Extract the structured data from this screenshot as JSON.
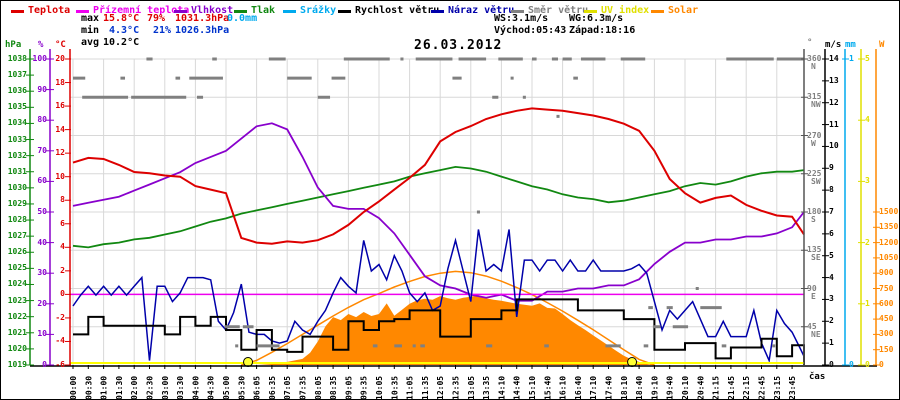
{
  "title": "26.03.2012",
  "legend": {
    "items": [
      {
        "label": "Teplota",
        "color": "#dd0000"
      },
      {
        "label": "Přízemní teplota",
        "color": "#ee00ee"
      },
      {
        "label": "Vlhkost",
        "color": "#8800cc"
      },
      {
        "label": "Tlak",
        "color": "#118811"
      },
      {
        "label": "Srážky",
        "color": "#00aaee"
      },
      {
        "label": "Rychlost větru",
        "color": "#000000"
      },
      {
        "label": "Náraz větru",
        "color": "#0000aa"
      },
      {
        "label": "Směr větru",
        "color": "#808080"
      },
      {
        "label": "UV index",
        "color": "#e0e000"
      },
      {
        "label": "Solar",
        "color": "#ff8800"
      }
    ]
  },
  "stats": {
    "max_label": "max",
    "max_temp": "15.8°C",
    "max_hum": "79%",
    "max_pres": "1031.3hPa",
    "max_rain": "0.0mm",
    "min_label": "min",
    "min_temp": "4.3°C",
    "min_hum": "21%",
    "min_pres": "1026.3hPa",
    "avg_label": "avg",
    "avg_temp": "10.2°C",
    "wind_speed": "WS:3.1m/s",
    "wind_gust": "WG:6.3m/s",
    "sunrise": "Východ:05:43",
    "sunset": "Západ:18:16"
  },
  "axis_headers": {
    "pressure": "hPa",
    "humidity": "%",
    "temperature": "°C",
    "direction": "°",
    "wind": "m/s",
    "rain": "mm",
    "solar": "W"
  },
  "chart_data": {
    "type": "line",
    "title": "26.03.2012",
    "x_axis": {
      "label": "čas",
      "tick_labels": [
        "00:00",
        "00:30",
        "01:00",
        "01:30",
        "02:00",
        "02:30",
        "03:00",
        "03:30",
        "04:00",
        "04:30",
        "05:00",
        "05:30",
        "06:05",
        "06:35",
        "07:05",
        "07:35",
        "08:05",
        "08:35",
        "09:05",
        "09:35",
        "10:05",
        "10:35",
        "11:05",
        "11:35",
        "12:05",
        "12:35",
        "13:05",
        "13:35",
        "14:10",
        "14:40",
        "15:10",
        "15:40",
        "16:10",
        "16:40",
        "17:10",
        "17:40",
        "18:10",
        "18:40",
        "19:10",
        "19:40",
        "20:10",
        "20:40",
        "21:15",
        "21:45",
        "22:15",
        "22:45",
        "23:15",
        "23:45"
      ]
    },
    "axes": {
      "pressure_hpa": {
        "min": 1019,
        "max": 1038,
        "tick_step": 1,
        "color": "#118811"
      },
      "humidity_pct": {
        "min": 0,
        "max": 100,
        "tick_step": 10,
        "color": "#8800cc"
      },
      "temperature_c": {
        "min": -6,
        "max": 20,
        "tick_step": 2,
        "color": "#dd0000"
      },
      "wind_direction_deg": {
        "min": 0,
        "max": 360,
        "tick_step": 45,
        "color": "#555555",
        "compass": {
          "45": "NE",
          "90": "E",
          "135": "SE",
          "180": "S",
          "225": "SW",
          "270": "W",
          "315": "NW",
          "360": "N"
        }
      },
      "wind_ms": {
        "min": 0,
        "max": 14,
        "tick_step": 1,
        "color": "#000000"
      },
      "rain_mm": {
        "min": 0,
        "max": 1,
        "tick_step": 1,
        "color": "#00aaee"
      },
      "uv_index": {
        "min": 0,
        "max": 5,
        "tick_step": 1,
        "color": "#e0e000"
      },
      "solar_w": {
        "min": 0,
        "label_max": 1500,
        "tick_step": 150,
        "color": "#ff8800"
      }
    },
    "series": {
      "temperature": {
        "name": "Teplota",
        "unit": "°C",
        "color": "#dd0000",
        "t_start": 0,
        "t_step": 0.5,
        "values": [
          11.2,
          11.6,
          11.5,
          11.0,
          10.4,
          10.3,
          10.1,
          10.0,
          9.2,
          8.9,
          8.6,
          4.8,
          4.4,
          4.3,
          4.5,
          4.4,
          4.6,
          5.1,
          5.9,
          7.0,
          7.9,
          8.9,
          9.9,
          11.0,
          13.0,
          13.8,
          14.3,
          14.9,
          15.3,
          15.6,
          15.8,
          15.7,
          15.6,
          15.4,
          15.2,
          14.9,
          14.5,
          13.9,
          12.2,
          9.8,
          8.6,
          7.8,
          8.2,
          8.4,
          7.6,
          7.1,
          6.7,
          6.6,
          5.1
        ]
      },
      "ground_temperature": {
        "name": "Přízemní teplota",
        "unit": "°C",
        "color": "#ee00ee",
        "constant_value": 0.0
      },
      "humidity": {
        "name": "Vlhkost",
        "unit": "%",
        "color": "#8800cc",
        "t_start": 0,
        "t_step": 0.5,
        "values": [
          52,
          53,
          54,
          55,
          57,
          59,
          61,
          63,
          66,
          68,
          70,
          74,
          78,
          79,
          77,
          68,
          58,
          52,
          51,
          51,
          48,
          43,
          36,
          29,
          26,
          25,
          23,
          22,
          23,
          21,
          21,
          24,
          24,
          25,
          25,
          26,
          26,
          28,
          33,
          37,
          40,
          40,
          41,
          41,
          42,
          42,
          43,
          45,
          50
        ]
      },
      "pressure": {
        "name": "Tlak",
        "unit": "hPa",
        "color": "#118811",
        "t_start": 0,
        "t_step": 0.5,
        "values": [
          1026.4,
          1026.3,
          1026.5,
          1026.6,
          1026.8,
          1026.9,
          1027.1,
          1027.3,
          1027.6,
          1027.9,
          1028.1,
          1028.4,
          1028.6,
          1028.8,
          1029.0,
          1029.2,
          1029.4,
          1029.6,
          1029.8,
          1030.0,
          1030.2,
          1030.4,
          1030.7,
          1030.9,
          1031.1,
          1031.3,
          1031.2,
          1031.0,
          1030.7,
          1030.4,
          1030.1,
          1029.9,
          1029.6,
          1029.4,
          1029.3,
          1029.1,
          1029.2,
          1029.4,
          1029.6,
          1029.8,
          1030.1,
          1030.3,
          1030.2,
          1030.4,
          1030.7,
          1030.9,
          1031.0,
          1031.0,
          1031.1
        ]
      },
      "rain": {
        "name": "Srážky",
        "unit": "mm",
        "color": "#00aaee",
        "constant_value": 0.0
      },
      "wind_speed": {
        "name": "Rychlost větru",
        "unit": "m/s",
        "color": "#000000",
        "t_start": 0,
        "t_step": 0.5,
        "values": [
          1.4,
          2.2,
          1.8,
          1.8,
          1.8,
          1.8,
          1.4,
          2.2,
          1.8,
          2.2,
          1.6,
          0.7,
          1.6,
          0.7,
          0.6,
          1.3,
          1.3,
          0.7,
          2.0,
          1.6,
          2.0,
          2.1,
          2.5,
          2.5,
          1.3,
          1.3,
          2.1,
          2.1,
          2.5,
          3.0,
          3.0,
          3.0,
          3.0,
          2.5,
          2.5,
          2.5,
          2.1,
          2.1,
          0.7,
          0.7,
          1.0,
          1.0,
          0.3,
          0.8,
          0.8,
          1.2,
          0.4,
          0.9,
          0.0
        ]
      },
      "wind_gust": {
        "name": "Náraz větru",
        "unit": "m/s",
        "color": "#0000aa",
        "t_start": 0,
        "t_step": 0.25,
        "values": [
          2.7,
          3.2,
          3.6,
          3.2,
          3.6,
          3.2,
          3.6,
          3.2,
          3.6,
          4.0,
          0.2,
          3.6,
          3.6,
          2.9,
          3.3,
          4.0,
          4.0,
          4.0,
          3.9,
          2.0,
          1.6,
          2.4,
          3.7,
          1.5,
          1.4,
          1.4,
          1.1,
          1.0,
          1.1,
          2.0,
          1.6,
          1.4,
          2.0,
          2.5,
          3.3,
          4.0,
          3.6,
          3.3,
          5.7,
          4.3,
          4.6,
          3.9,
          5.0,
          4.3,
          3.3,
          2.9,
          3.3,
          2.5,
          2.7,
          4.4,
          5.7,
          4.3,
          2.9,
          6.2,
          4.3,
          4.6,
          4.3,
          6.2,
          2.2,
          4.8,
          4.8,
          4.3,
          4.8,
          4.8,
          4.3,
          4.8,
          4.3,
          4.3,
          4.8,
          4.3,
          4.3,
          4.3,
          4.3,
          4.4,
          4.6,
          4.2,
          2.9,
          1.6,
          2.5,
          2.1,
          2.5,
          2.9,
          2.1,
          1.3,
          1.3,
          2.0,
          1.3,
          1.3,
          1.3,
          2.5,
          1.0,
          0.2,
          2.5,
          1.9,
          1.5,
          0.8,
          0.4
        ]
      },
      "wind_direction": {
        "name": "Směr větru",
        "unit": "°",
        "color": "#808080",
        "segments": [
          [
            0,
            0.4,
            337.5
          ],
          [
            0.3,
            1.8,
            315
          ],
          [
            1.55,
            1.7,
            337.5
          ],
          [
            1.9,
            3.7,
            315
          ],
          [
            2.4,
            2.6,
            360
          ],
          [
            3.35,
            3.5,
            337.5
          ],
          [
            3.8,
            4.9,
            337.5
          ],
          [
            4.05,
            4.25,
            315
          ],
          [
            4.55,
            4.7,
            360
          ],
          [
            4.95,
            5.45,
            45
          ],
          [
            5.3,
            5.4,
            22.5
          ],
          [
            5.55,
            5.9,
            45
          ],
          [
            6.0,
            6.75,
            22.5
          ],
          [
            6.4,
            6.95,
            360
          ],
          [
            7.0,
            7.8,
            337.5
          ],
          [
            8.0,
            8.4,
            315
          ],
          [
            8.45,
            8.9,
            337.5
          ],
          [
            8.85,
            10.35,
            360
          ],
          [
            9.8,
            9.95,
            22.5
          ],
          [
            10.5,
            10.75,
            22.5
          ],
          [
            10.7,
            10.8,
            360
          ],
          [
            11.1,
            11.2,
            22.5
          ],
          [
            11.2,
            12.4,
            360
          ],
          [
            11.35,
            11.5,
            22.5
          ],
          [
            12.4,
            12.7,
            337.5
          ],
          [
            12.6,
            13.5,
            360
          ],
          [
            13.2,
            13.3,
            180
          ],
          [
            13.5,
            13.7,
            22.5
          ],
          [
            13.7,
            13.9,
            315
          ],
          [
            13.9,
            14.7,
            360
          ],
          [
            14.3,
            14.4,
            337.5
          ],
          [
            14.7,
            14.8,
            315
          ],
          [
            15.0,
            15.15,
            360
          ],
          [
            15.4,
            15.55,
            22.5
          ],
          [
            15.65,
            15.85,
            360
          ],
          [
            15.8,
            15.9,
            292.5
          ],
          [
            16.0,
            16.3,
            360
          ],
          [
            16.35,
            16.5,
            337.5
          ],
          [
            16.6,
            17.4,
            360
          ],
          [
            17.4,
            17.9,
            22.5
          ],
          [
            17.9,
            18.7,
            360
          ],
          [
            18.65,
            18.8,
            22.5
          ],
          [
            18.8,
            18.95,
            67.5
          ],
          [
            18.95,
            19.2,
            45
          ],
          [
            19.4,
            19.6,
            67.5
          ],
          [
            19.6,
            20.1,
            45
          ],
          [
            20.35,
            20.45,
            90
          ],
          [
            20.5,
            21.2,
            67.5
          ],
          [
            21.2,
            21.35,
            22.5
          ],
          [
            21.35,
            22.9,
            360
          ],
          [
            22.85,
            22.95,
            22.5
          ],
          [
            23.0,
            24.0,
            360
          ]
        ]
      },
      "uv": {
        "name": "UV index",
        "unit": "UV",
        "color": "#ffff00",
        "constant_value": 0.0
      },
      "solar": {
        "name": "Solar",
        "unit": "W",
        "color": "#ff8800",
        "t_start": 6,
        "t_step": 0.25,
        "values": [
          0,
          5,
          10,
          20,
          30,
          45,
          60,
          120,
          230,
          380,
          470,
          440,
          500,
          470,
          520,
          480,
          500,
          604,
          483,
          540,
          600,
          634,
          650,
          640,
          675,
          655,
          640,
          660,
          670,
          685,
          655,
          640,
          630,
          615,
          600,
          590,
          580,
          604,
          560,
          554,
          500,
          440,
          390,
          342,
          290,
          240,
          190,
          140,
          90,
          55,
          30,
          10,
          0
        ]
      },
      "solar_max": {
        "name": "Solar teoretické maximum",
        "unit": "W",
        "color": "#ff8800",
        "t_start": 5.5,
        "t_step": 0.5,
        "values": [
          0,
          45,
          125,
          210,
          300,
          390,
          480,
          565,
          640,
          700,
          765,
          820,
          868,
          900,
          918,
          905,
          872,
          822,
          760,
          690,
          612,
          528,
          438,
          345,
          248,
          150,
          55,
          0
        ]
      }
    },
    "sun_markers": {
      "sunrise_h": 5.72,
      "sunset_h": 18.27
    }
  }
}
